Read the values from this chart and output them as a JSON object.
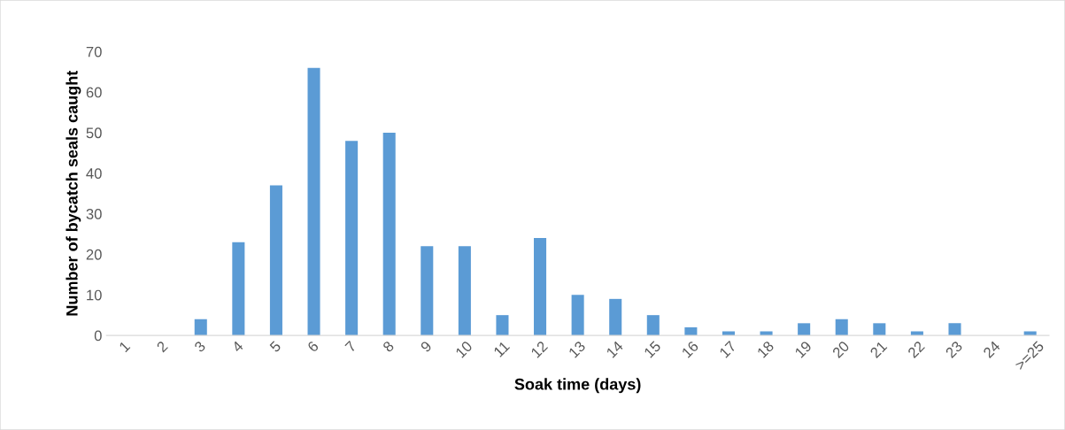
{
  "chart_data": {
    "type": "bar",
    "xlabel": "Soak time (days)",
    "ylabel": "Number of bycatch seals caught",
    "categories": [
      "1",
      "2",
      "3",
      "4",
      "5",
      "6",
      "7",
      "8",
      "9",
      "10",
      "11",
      "12",
      "13",
      "14",
      "15",
      "16",
      "17",
      "18",
      "19",
      "20",
      "21",
      "22",
      "23",
      "24",
      ">=25"
    ],
    "values": [
      0,
      0,
      4,
      23,
      37,
      66,
      48,
      50,
      22,
      22,
      5,
      24,
      10,
      9,
      5,
      2,
      1,
      1,
      3,
      4,
      3,
      1,
      3,
      0,
      1
    ],
    "color": "#5b9bd5",
    "ylim": [
      0,
      70
    ],
    "yticks": [
      0,
      10,
      20,
      30,
      40,
      50,
      60,
      70
    ],
    "grid": false
  }
}
